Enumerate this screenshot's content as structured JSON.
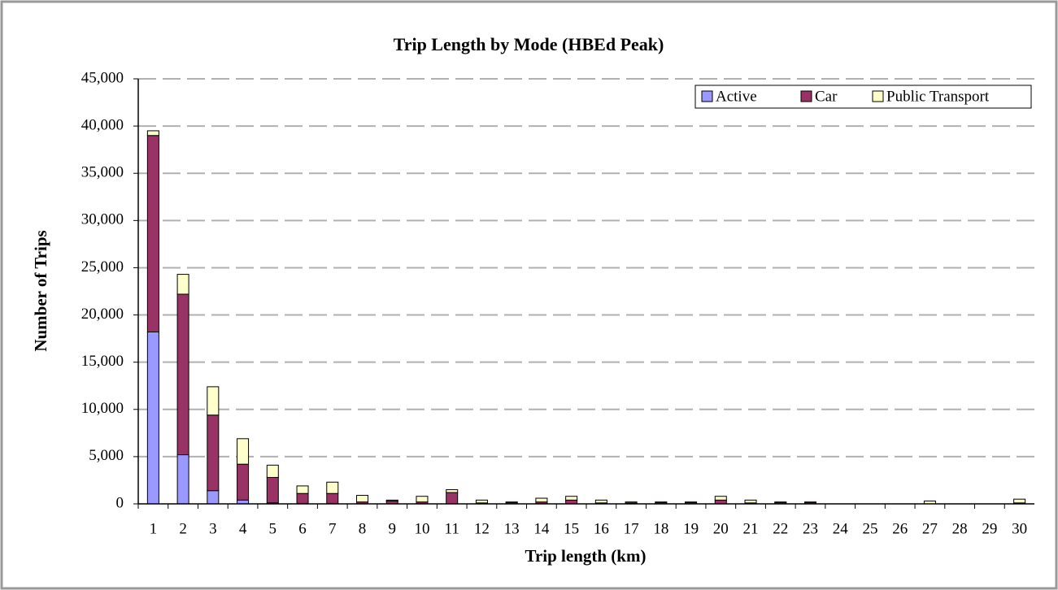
{
  "chart_data": {
    "type": "stacked_bar",
    "title": "Trip Length by Mode (HBEd Peak)",
    "x_label": "Trip length (km)",
    "y_label": "Number of Trips",
    "categories": [
      "1",
      "2",
      "3",
      "4",
      "5",
      "6",
      "7",
      "8",
      "9",
      "10",
      "11",
      "12",
      "13",
      "14",
      "15",
      "16",
      "17",
      "18",
      "19",
      "20",
      "21",
      "22",
      "23",
      "24",
      "25",
      "26",
      "27",
      "28",
      "29",
      "30"
    ],
    "series": [
      {
        "name": "Active",
        "color": "#9999ff",
        "values": [
          18200,
          5200,
          1400,
          400,
          100,
          50,
          50,
          0,
          0,
          0,
          0,
          0,
          0,
          0,
          0,
          0,
          0,
          0,
          0,
          0,
          0,
          0,
          0,
          0,
          0,
          0,
          0,
          0,
          0,
          0
        ]
      },
      {
        "name": "Car",
        "color": "#993366",
        "values": [
          20800,
          17000,
          8000,
          3800,
          2700,
          1050,
          1050,
          200,
          300,
          200,
          1200,
          100,
          150,
          200,
          400,
          100,
          100,
          150,
          150,
          400,
          100,
          150,
          150,
          0,
          0,
          0,
          0,
          0,
          0,
          100
        ]
      },
      {
        "name": "Public Transport",
        "color": "#ffffcc",
        "values": [
          500,
          2100,
          3000,
          2700,
          1300,
          800,
          1200,
          700,
          100,
          600,
          300,
          300,
          50,
          400,
          400,
          300,
          100,
          50,
          50,
          400,
          300,
          50,
          50,
          0,
          0,
          0,
          300,
          0,
          0,
          400
        ]
      }
    ],
    "ylim": [
      0,
      45000
    ],
    "yticks": [
      0,
      {
        "value": 5000,
        "label": "5,000"
      },
      {
        "value": 10000,
        "label": "10,000"
      },
      {
        "value": 15000,
        "label": "15,000"
      },
      {
        "value": 20000,
        "label": "20,000"
      },
      {
        "value": 25000,
        "label": "25,000"
      },
      {
        "value": 30000,
        "label": "30,000"
      },
      {
        "value": 35000,
        "label": "35,000"
      },
      {
        "value": 40000,
        "label": "40,000"
      },
      {
        "value": 45000,
        "label": "45,000"
      }
    ],
    "grid": true,
    "legend": "top-right"
  }
}
